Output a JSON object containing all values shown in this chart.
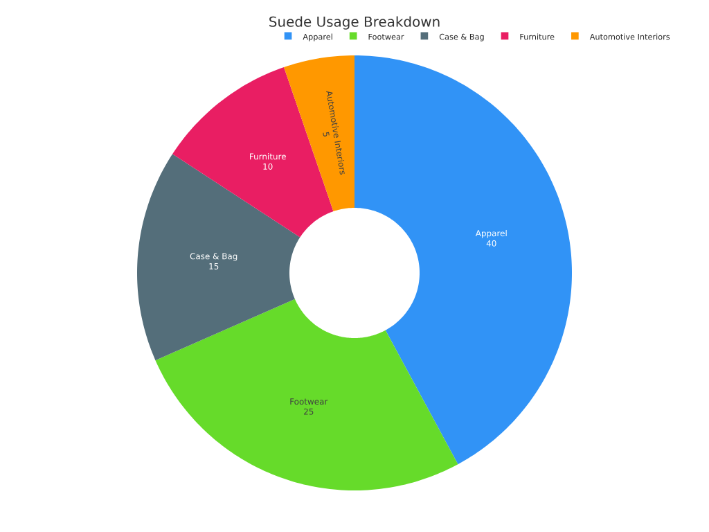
{
  "chart_data": {
    "type": "donut",
    "title": "Suede Usage Breakdown",
    "categories": [
      "Apparel",
      "Footwear",
      "Case & Bag",
      "Furniture",
      "Automotive Interiors"
    ],
    "values": [
      40,
      25,
      15,
      10,
      5
    ],
    "colors": [
      "#3193f6",
      "#66db2a",
      "#546e7a",
      "#e91e63",
      "#ff9800"
    ],
    "data_labels": true,
    "legend": "top"
  }
}
